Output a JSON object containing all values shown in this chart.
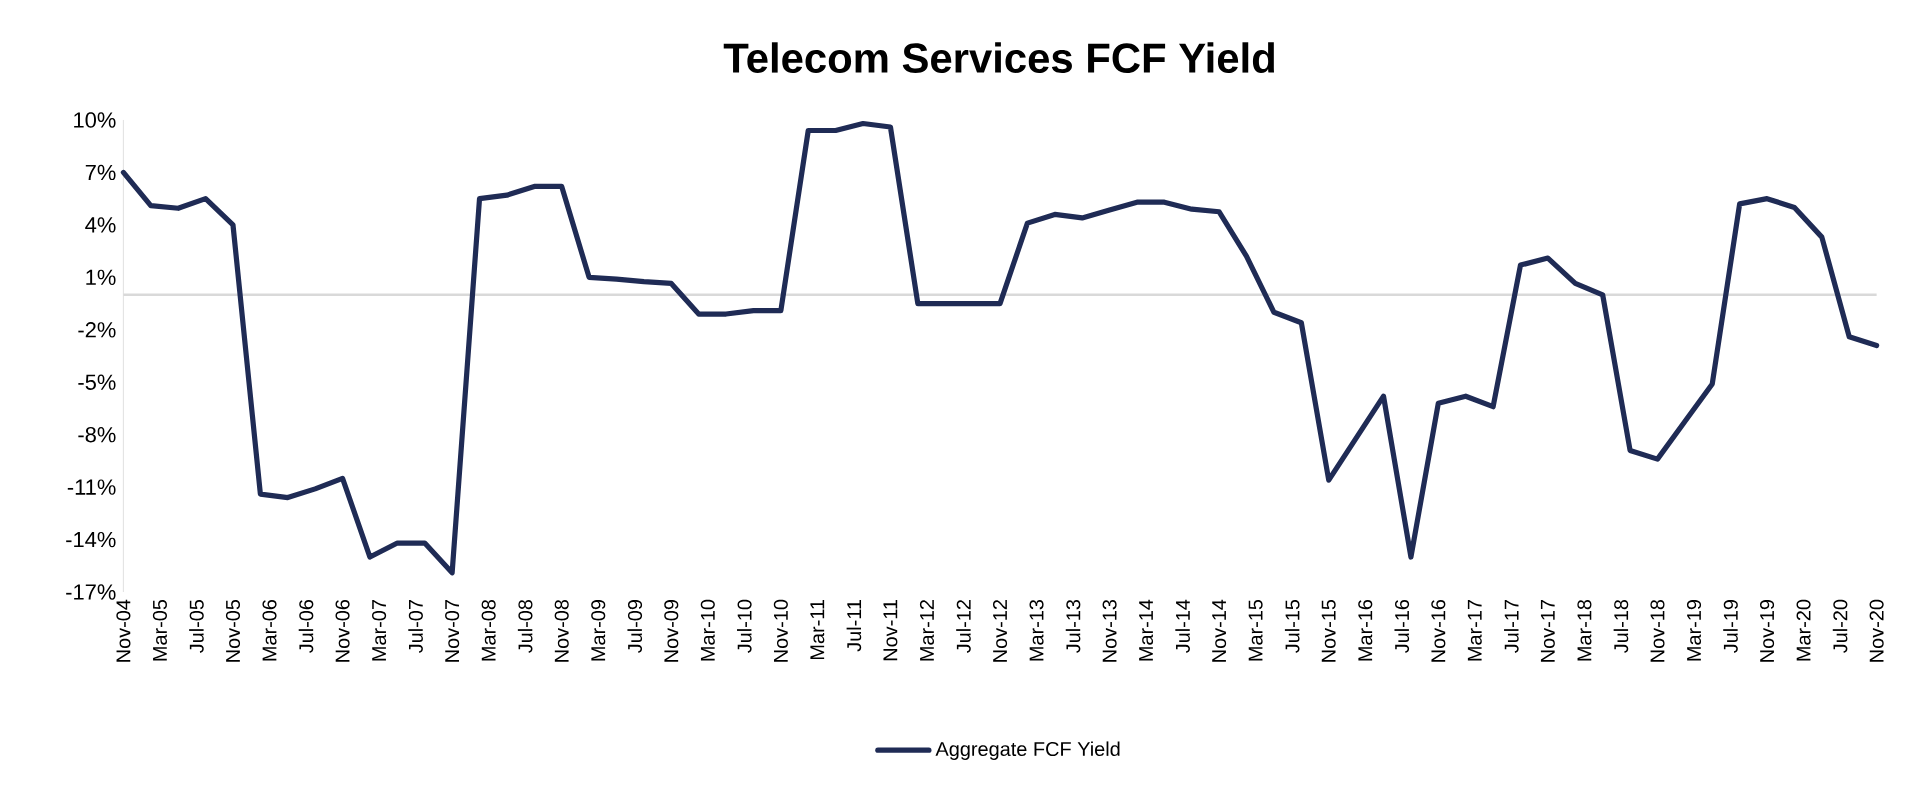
{
  "chart_data": {
    "type": "line",
    "title": "Telecom Services FCF Yield",
    "x": [
      "2004-11",
      "2005-02",
      "2005-05",
      "2005-08",
      "2005-11",
      "2006-02",
      "2006-05",
      "2006-08",
      "2006-11",
      "2007-02",
      "2007-05",
      "2007-08",
      "2007-11",
      "2008-02",
      "2008-05",
      "2008-08",
      "2008-11",
      "2009-02",
      "2009-05",
      "2009-08",
      "2009-11",
      "2010-02",
      "2010-05",
      "2010-08",
      "2010-11",
      "2011-02",
      "2011-05",
      "2011-08",
      "2011-11",
      "2012-02",
      "2012-05",
      "2012-08",
      "2012-11",
      "2013-02",
      "2013-05",
      "2013-08",
      "2013-11",
      "2014-02",
      "2014-05",
      "2014-08",
      "2014-11",
      "2015-02",
      "2015-05",
      "2015-08",
      "2015-11",
      "2016-02",
      "2016-05",
      "2016-08",
      "2016-11",
      "2017-02",
      "2017-05",
      "2017-08",
      "2017-11",
      "2018-02",
      "2018-05",
      "2018-08",
      "2018-11",
      "2019-02",
      "2019-05",
      "2019-08",
      "2019-11",
      "2020-02",
      "2020-05",
      "2020-08",
      "2020-11"
    ],
    "series": [
      {
        "name": "Aggregate FCF Yield",
        "color": "#1f2b55",
        "values": [
          7.0,
          5.1,
          4.95,
          5.5,
          4.0,
          -11.4,
          -11.6,
          -11.1,
          -10.5,
          -15.0,
          -14.2,
          -14.2,
          -15.9,
          5.5,
          5.7,
          6.2,
          6.2,
          1.0,
          0.9,
          0.75,
          0.65,
          -1.1,
          -1.1,
          -0.9,
          -0.9,
          9.4,
          9.4,
          9.8,
          9.6,
          -0.5,
          -0.5,
          -0.5,
          -0.5,
          4.1,
          4.6,
          4.4,
          4.85,
          5.3,
          5.3,
          4.9,
          4.75,
          2.2,
          -1.0,
          -1.6,
          -10.6,
          -8.2,
          -5.8,
          -15.0,
          -6.2,
          -5.8,
          -6.4,
          1.7,
          2.1,
          0.65,
          0.0,
          -8.9,
          -9.4,
          -7.25,
          -5.1,
          5.2,
          5.5,
          5.0,
          3.3,
          -2.4,
          -2.9
        ]
      }
    ],
    "xlim": [
      "2004-11",
      "2020-11"
    ],
    "xticks": [
      {
        "value": "2004-11",
        "label": "Nov-04"
      },
      {
        "value": "2005-03",
        "label": "Mar-05"
      },
      {
        "value": "2005-07",
        "label": "Jul-05"
      },
      {
        "value": "2005-11",
        "label": "Nov-05"
      },
      {
        "value": "2006-03",
        "label": "Mar-06"
      },
      {
        "value": "2006-07",
        "label": "Jul-06"
      },
      {
        "value": "2006-11",
        "label": "Nov-06"
      },
      {
        "value": "2007-03",
        "label": "Mar-07"
      },
      {
        "value": "2007-07",
        "label": "Jul-07"
      },
      {
        "value": "2007-11",
        "label": "Nov-07"
      },
      {
        "value": "2008-03",
        "label": "Mar-08"
      },
      {
        "value": "2008-07",
        "label": "Jul-08"
      },
      {
        "value": "2008-11",
        "label": "Nov-08"
      },
      {
        "value": "2009-03",
        "label": "Mar-09"
      },
      {
        "value": "2009-07",
        "label": "Jul-09"
      },
      {
        "value": "2009-11",
        "label": "Nov-09"
      },
      {
        "value": "2010-03",
        "label": "Mar-10"
      },
      {
        "value": "2010-07",
        "label": "Jul-10"
      },
      {
        "value": "2010-11",
        "label": "Nov-10"
      },
      {
        "value": "2011-03",
        "label": "Mar-11"
      },
      {
        "value": "2011-07",
        "label": "Jul-11"
      },
      {
        "value": "2011-11",
        "label": "Nov-11"
      },
      {
        "value": "2012-03",
        "label": "Mar-12"
      },
      {
        "value": "2012-07",
        "label": "Jul-12"
      },
      {
        "value": "2012-11",
        "label": "Nov-12"
      },
      {
        "value": "2013-03",
        "label": "Mar-13"
      },
      {
        "value": "2013-07",
        "label": "Jul-13"
      },
      {
        "value": "2013-11",
        "label": "Nov-13"
      },
      {
        "value": "2014-03",
        "label": "Mar-14"
      },
      {
        "value": "2014-07",
        "label": "Jul-14"
      },
      {
        "value": "2014-11",
        "label": "Nov-14"
      },
      {
        "value": "2015-03",
        "label": "Mar-15"
      },
      {
        "value": "2015-07",
        "label": "Jul-15"
      },
      {
        "value": "2015-11",
        "label": "Nov-15"
      },
      {
        "value": "2016-03",
        "label": "Mar-16"
      },
      {
        "value": "2016-07",
        "label": "Jul-16"
      },
      {
        "value": "2016-11",
        "label": "Nov-16"
      },
      {
        "value": "2017-03",
        "label": "Mar-17"
      },
      {
        "value": "2017-07",
        "label": "Jul-17"
      },
      {
        "value": "2017-11",
        "label": "Nov-17"
      },
      {
        "value": "2018-03",
        "label": "Mar-18"
      },
      {
        "value": "2018-07",
        "label": "Jul-18"
      },
      {
        "value": "2018-11",
        "label": "Nov-18"
      },
      {
        "value": "2019-03",
        "label": "Mar-19"
      },
      {
        "value": "2019-07",
        "label": "Jul-19"
      },
      {
        "value": "2019-11",
        "label": "Nov-19"
      },
      {
        "value": "2020-03",
        "label": "Mar-20"
      },
      {
        "value": "2020-07",
        "label": "Jul-20"
      },
      {
        "value": "2020-11",
        "label": "Nov-20"
      }
    ],
    "ylim": [
      -17,
      10
    ],
    "yticks": [
      {
        "value": 10,
        "label": "10%"
      },
      {
        "value": 7,
        "label": "7%"
      },
      {
        "value": 4,
        "label": "4%"
      },
      {
        "value": 1,
        "label": "1%"
      },
      {
        "value": -2,
        "label": "-2%"
      },
      {
        "value": -5,
        "label": "-5%"
      },
      {
        "value": -8,
        "label": "-8%"
      },
      {
        "value": -11,
        "label": "-11%"
      },
      {
        "value": -14,
        "label": "-14%"
      },
      {
        "value": -17,
        "label": "-17%"
      }
    ],
    "ref_lines": [
      {
        "axis": "y",
        "value": 0,
        "color": "#d9d9d9"
      }
    ],
    "legend": "bottom"
  }
}
